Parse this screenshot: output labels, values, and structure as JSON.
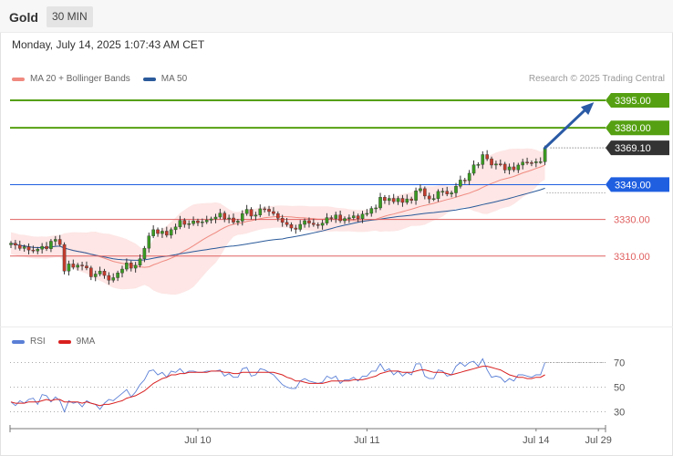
{
  "header": {
    "title": "Gold",
    "timeframe": "30 MIN"
  },
  "datetime": "Monday, July 14, 2025 1:07:43 AM CET",
  "legend": [
    {
      "label": "MA 20 + Bollinger Bands",
      "color": "#f08a80"
    },
    {
      "label": "MA 50",
      "color": "#2a5a9a"
    }
  ],
  "copyright": "Research © 2025 Trading Central",
  "rsi_legend": [
    {
      "label": "RSI",
      "color": "#5a7fd6"
    },
    {
      "label": "9MA",
      "color": "#d92020"
    }
  ],
  "chart_data": {
    "type": "candlestick",
    "ylim": [
      3285,
      3400
    ],
    "x_axis_labels": [
      {
        "label": "Jul 10",
        "index": 42
      },
      {
        "label": "Jul 11",
        "index": 80
      },
      {
        "label": "Jul 14",
        "index": 118
      },
      {
        "label": "Jul 29",
        "index": 132
      }
    ],
    "levels": [
      {
        "value": 3395.0,
        "label": "3395.00",
        "kind": "resistance",
        "color": "#55a012",
        "tag": true
      },
      {
        "value": 3380.0,
        "label": "3380.00",
        "kind": "resistance",
        "color": "#55a012",
        "tag": true
      },
      {
        "value": 3369.1,
        "label": "3369.10",
        "kind": "last",
        "color": "#333333",
        "tag": true
      },
      {
        "value": 3349.0,
        "label": "3349.00",
        "kind": "pivot",
        "color": "#1f5fe0",
        "tag": true
      },
      {
        "value": 3330.0,
        "label": "3330.00",
        "kind": "support",
        "color": "#e06060",
        "tag": false
      },
      {
        "value": 3310.0,
        "label": "3310.00",
        "kind": "support",
        "color": "#e06060",
        "tag": false
      }
    ],
    "forecast_arrow": {
      "from_index": 120,
      "from_value": 3369,
      "to_index": 131,
      "to_value": 3394,
      "color": "#2a5aa5"
    },
    "rsi": {
      "ylim": [
        20,
        80
      ],
      "levels": [
        70,
        50,
        30
      ]
    },
    "closes": [
      3317.0,
      3316.0,
      3314.2,
      3315.1,
      3313.3,
      3312.8,
      3313.8,
      3315.3,
      3314.0,
      3318.1,
      3319.1,
      3316.3,
      3301.8,
      3305.7,
      3303.9,
      3305.1,
      3304.6,
      3303.5,
      3298.7,
      3300.2,
      3301.8,
      3299.4,
      3296.8,
      3298.2,
      3300.8,
      3302.9,
      3306.3,
      3303.4,
      3305.0,
      3308.5,
      3314.3,
      3321.0,
      3324.4,
      3322.3,
      3323.6,
      3321.4,
      3324.4,
      3325.9,
      3329.5,
      3327.3,
      3327.7,
      3329.2,
      3328.2,
      3328.7,
      3329.6,
      3330.3,
      3331.3,
      3333.4,
      3330.3,
      3330.8,
      3328.5,
      3329.1,
      3333.2,
      3335.5,
      3331.8,
      3332.4,
      3335.8,
      3335.6,
      3334.3,
      3333.2,
      3330.7,
      3328.4,
      3327.2,
      3325.3,
      3324.6,
      3327.3,
      3329.3,
      3328.0,
      3327.2,
      3326.8,
      3328.0,
      3331.0,
      3330.5,
      3332.4,
      3329.3,
      3330.5,
      3330.9,
      3332.0,
      3330.4,
      3332.9,
      3333.3,
      3336.0,
      3336.3,
      3342.1,
      3340.3,
      3341.5,
      3339.7,
      3341.5,
      3339.3,
      3341.2,
      3340.4,
      3345.6,
      3346.8,
      3342.8,
      3341.2,
      3341.4,
      3345.3,
      3345.4,
      3343.9,
      3344.5,
      3348.1,
      3351.5,
      3351.2,
      3355.2,
      3359.8,
      3360.0,
      3365.4,
      3363.1,
      3359.7,
      3360.3,
      3360.2,
      3357.0,
      3358.7,
      3357.1,
      3359.7,
      3361.3,
      3361.0,
      3360.9,
      3361.5,
      3361.5,
      3369.1
    ],
    "rsi_values": [
      38,
      35,
      39,
      37,
      40,
      41,
      36,
      44,
      43,
      38,
      42,
      39,
      30,
      39,
      37,
      38,
      34,
      39,
      37,
      36,
      32,
      37,
      40,
      39,
      42,
      45,
      48,
      42,
      46,
      52,
      56,
      63,
      64,
      60,
      62,
      58,
      63,
      62,
      65,
      61,
      63,
      63,
      62,
      62,
      63,
      63,
      63,
      64,
      59,
      61,
      58,
      58,
      65,
      66,
      59,
      60,
      65,
      64,
      62,
      60,
      56,
      52,
      50,
      49,
      49,
      55,
      57,
      55,
      54,
      53,
      54,
      59,
      57,
      59,
      53,
      56,
      56,
      58,
      55,
      59,
      59,
      63,
      63,
      69,
      63,
      65,
      60,
      63,
      59,
      62,
      60,
      69,
      69,
      59,
      57,
      57,
      64,
      63,
      59,
      60,
      67,
      70,
      67,
      70,
      71,
      67,
      73,
      64,
      58,
      59,
      58,
      54,
      57,
      55,
      60,
      60,
      59,
      58,
      60,
      60,
      70
    ],
    "rsi_ma_values": [
      38,
      37,
      37,
      37,
      38,
      38,
      38,
      39,
      40,
      39,
      40,
      40,
      38,
      38,
      38,
      38,
      37,
      38,
      37,
      36,
      35,
      36,
      36,
      37,
      38,
      39,
      41,
      42,
      43,
      45,
      47,
      50,
      53,
      55,
      57,
      58,
      60,
      60,
      61,
      61,
      62,
      62,
      62,
      62,
      62,
      63,
      63,
      63,
      62,
      62,
      61,
      61,
      62,
      62,
      62,
      62,
      62,
      62,
      62,
      62,
      61,
      60,
      58,
      57,
      55,
      55,
      54,
      53,
      53,
      53,
      53,
      54,
      55,
      55,
      55,
      55,
      55,
      56,
      56,
      56,
      57,
      58,
      59,
      61,
      62,
      63,
      63,
      63,
      62,
      62,
      62,
      63,
      64,
      64,
      63,
      62,
      62,
      62,
      61,
      60,
      61,
      62,
      63,
      64,
      65,
      66,
      67,
      67,
      66,
      65,
      64,
      62,
      60,
      59,
      58,
      58,
      57,
      57,
      58,
      58,
      60
    ]
  }
}
